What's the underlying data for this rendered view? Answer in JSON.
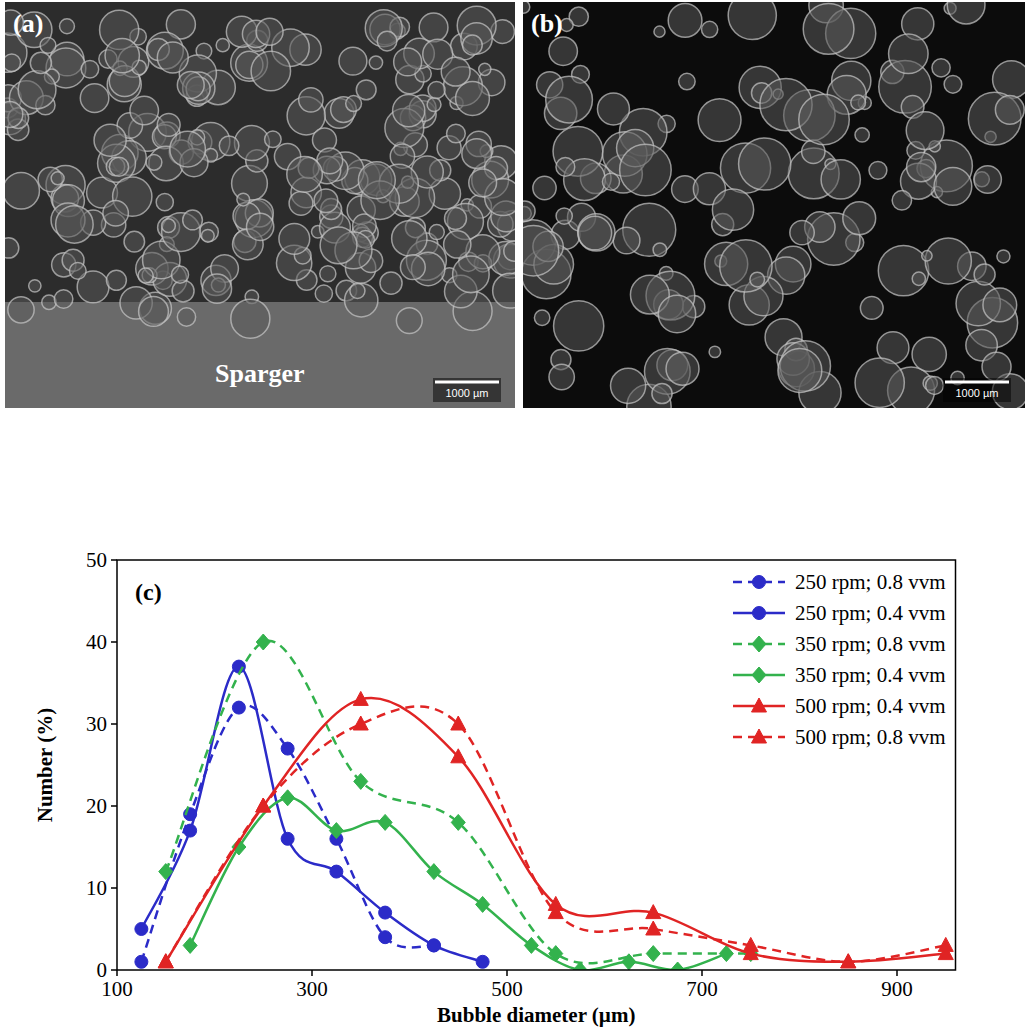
{
  "images": [
    {
      "label": "(a)",
      "annotation": "Sparger",
      "scale_bar": "1000 µm"
    },
    {
      "label": "(b)",
      "scale_bar": "1000 µm"
    }
  ],
  "chart_data": {
    "type": "line",
    "title": "(c)",
    "x_label": "Bubble diameter (µm)",
    "y_label": "Number (%)",
    "xlim": [
      100,
      960
    ],
    "xticks": [
      100,
      300,
      500,
      700,
      900
    ],
    "ylim": [
      0,
      50
    ],
    "yticks": [
      0,
      10,
      20,
      30,
      40,
      50
    ],
    "grid": false,
    "legend": "top-right",
    "series": [
      {
        "name": "250 rpm; 0.8 vvm",
        "color": "#2b2bc8",
        "marker": "circle",
        "line_style": "dashed",
        "x": [
          125,
          175,
          225,
          275,
          325,
          375,
          425
        ],
        "values": [
          1,
          19,
          32,
          27,
          16,
          4,
          3
        ]
      },
      {
        "name": "250 rpm; 0.4 vvm",
        "color": "#2b2bc8",
        "marker": "circle",
        "line_style": "solid",
        "x": [
          125,
          175,
          225,
          275,
          325,
          375,
          425,
          475
        ],
        "values": [
          5,
          17,
          37,
          16,
          12,
          7,
          3,
          1
        ]
      },
      {
        "name": "350 rpm; 0.8 vvm",
        "color": "#33b24d",
        "marker": "diamond",
        "line_style": "dashed",
        "x": [
          150,
          250,
          350,
          450,
          550,
          650,
          750
        ],
        "values": [
          12,
          40,
          23,
          18,
          2,
          2,
          2
        ]
      },
      {
        "name": "350 rpm; 0.4 vvm",
        "color": "#33b24d",
        "marker": "diamond",
        "line_style": "solid",
        "x": [
          175,
          225,
          275,
          325,
          375,
          425,
          475,
          525,
          575,
          625,
          675,
          725
        ],
        "values": [
          3,
          15,
          21,
          17,
          18,
          12,
          8,
          3,
          0,
          1,
          0,
          2
        ]
      },
      {
        "name": "500 rpm; 0.4 vvm",
        "color": "#e02424",
        "marker": "triangle",
        "line_style": "solid",
        "x": [
          150,
          250,
          350,
          450,
          550,
          650,
          750,
          850,
          950
        ],
        "values": [
          1,
          20,
          33,
          26,
          8,
          7,
          2,
          1,
          2
        ]
      },
      {
        "name": "500 rpm; 0.8 vvm",
        "color": "#e02424",
        "marker": "triangle",
        "line_style": "dashed",
        "x": [
          150,
          250,
          350,
          450,
          550,
          650,
          750,
          850,
          950
        ],
        "values": [
          1,
          20,
          30,
          30,
          7,
          5,
          3,
          1,
          3
        ]
      }
    ]
  }
}
